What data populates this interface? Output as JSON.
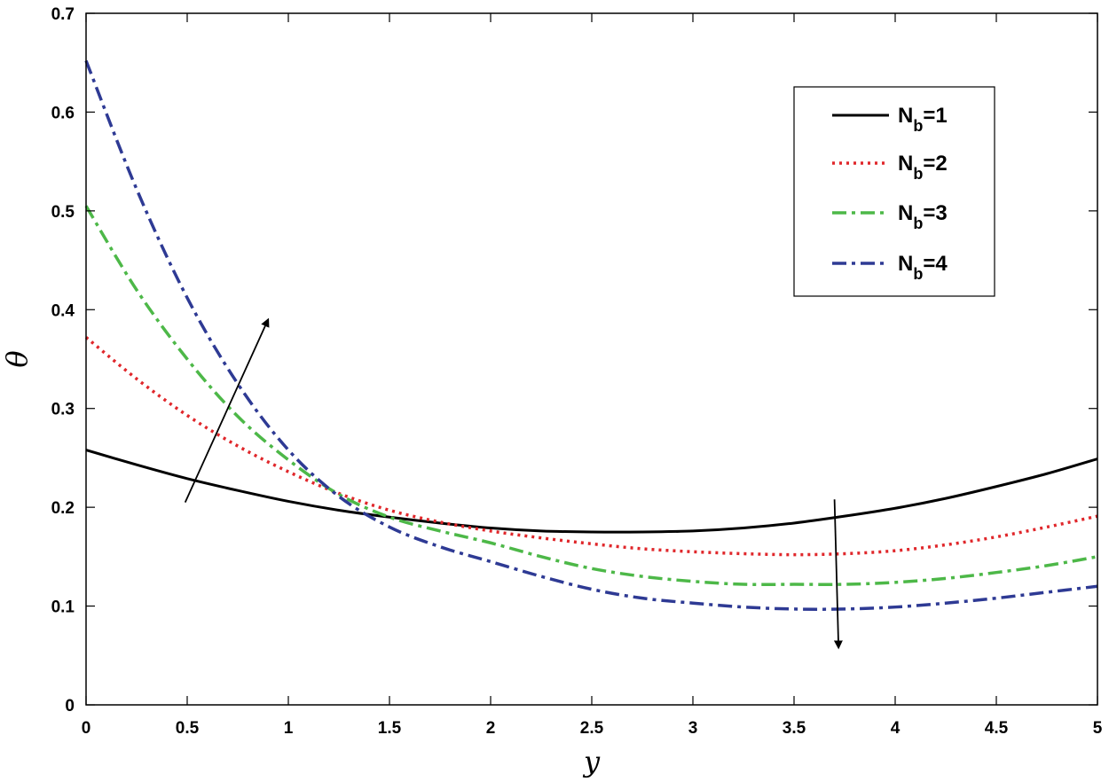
{
  "chart_data": {
    "type": "line",
    "xlabel": "y",
    "ylabel": "θ",
    "xlim": [
      0,
      5
    ],
    "ylim": [
      0,
      0.7
    ],
    "x_ticks": [
      "0",
      "0.5",
      "1",
      "1.5",
      "2",
      "2.5",
      "3",
      "3.5",
      "4",
      "4.5",
      "5"
    ],
    "y_ticks": [
      "0",
      "0.1",
      "0.2",
      "0.3",
      "0.4",
      "0.5",
      "0.6",
      "0.7"
    ],
    "grid": false,
    "legend_position": "top-right",
    "x": [
      0,
      0.25,
      0.5,
      0.75,
      1,
      1.25,
      1.5,
      1.75,
      2,
      2.25,
      2.5,
      2.75,
      3,
      3.25,
      3.5,
      3.75,
      4,
      4.25,
      4.5,
      4.75,
      5
    ],
    "series": [
      {
        "name": "N_b=1",
        "legend_main": "N",
        "legend_sub": "b",
        "legend_tail": "=1",
        "color": "#000000",
        "style": "solid",
        "values": [
          0.258,
          0.243,
          0.229,
          0.217,
          0.206,
          0.197,
          0.19,
          0.184,
          0.179,
          0.176,
          0.175,
          0.175,
          0.176,
          0.179,
          0.184,
          0.191,
          0.199,
          0.209,
          0.221,
          0.234,
          0.249
        ]
      },
      {
        "name": "N_b=2",
        "legend_main": "N",
        "legend_sub": "b",
        "legend_tail": "=2",
        "color": "#e0272b",
        "style": "dotted",
        "values": [
          0.372,
          0.33,
          0.293,
          0.262,
          0.236,
          0.214,
          0.197,
          0.185,
          0.176,
          0.169,
          0.163,
          0.158,
          0.155,
          0.153,
          0.152,
          0.153,
          0.156,
          0.162,
          0.17,
          0.18,
          0.191
        ]
      },
      {
        "name": "N_b=3",
        "legend_main": "N",
        "legend_sub": "b",
        "legend_tail": "=3",
        "color": "#4db848",
        "style": "dashdot",
        "values": [
          0.505,
          0.42,
          0.35,
          0.292,
          0.248,
          0.213,
          0.19,
          0.176,
          0.164,
          0.15,
          0.138,
          0.13,
          0.125,
          0.122,
          0.122,
          0.122,
          0.124,
          0.128,
          0.134,
          0.141,
          0.15
        ]
      },
      {
        "name": "N_b=4",
        "legend_main": "N",
        "legend_sub": "b",
        "legend_tail": "=4",
        "color": "#2e3a94",
        "style": "dashdot",
        "values": [
          0.652,
          0.522,
          0.412,
          0.325,
          0.258,
          0.211,
          0.18,
          0.16,
          0.145,
          0.13,
          0.117,
          0.108,
          0.103,
          0.099,
          0.097,
          0.097,
          0.099,
          0.103,
          0.108,
          0.114,
          0.12
        ]
      }
    ],
    "annotations": [
      {
        "type": "arrow",
        "direction": "up",
        "from": [
          0.49,
          0.205
        ],
        "to": [
          0.9,
          0.39
        ]
      },
      {
        "type": "arrow",
        "direction": "down",
        "from": [
          3.7,
          0.208
        ],
        "to": [
          3.72,
          0.058
        ]
      }
    ]
  }
}
